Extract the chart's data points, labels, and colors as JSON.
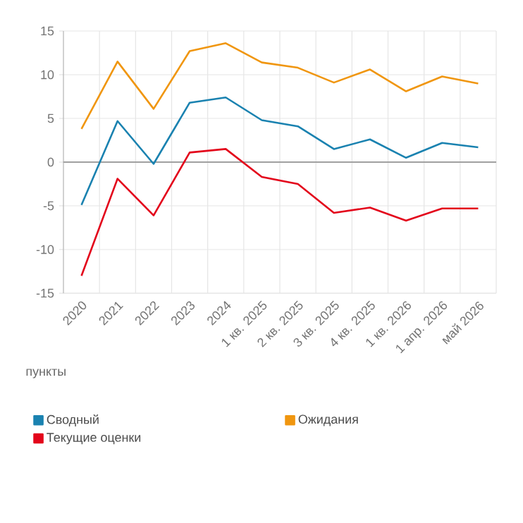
{
  "chart_data": {
    "type": "line",
    "ylabel": "пункты",
    "categories": [
      "2020",
      "2021",
      "2022",
      "2023",
      "2024",
      "1 кв. 2025",
      "2 кв. 2025",
      "3 кв. 2025",
      "4 кв. 2025",
      "1 кв. 2026",
      "1 апр. 2026",
      "май 2026"
    ],
    "series": [
      {
        "name": "Сводный",
        "color": "#1a82b0",
        "values": [
          -4.9,
          4.7,
          -0.2,
          6.8,
          7.4,
          4.8,
          4.1,
          1.5,
          2.6,
          0.5,
          2.2,
          1.7
        ]
      },
      {
        "name": "Ожидания",
        "color": "#f0960f",
        "values": [
          3.8,
          11.5,
          6.1,
          12.7,
          13.6,
          11.4,
          10.8,
          9.1,
          10.6,
          8.1,
          9.8,
          9.0
        ]
      },
      {
        "name": "Текущие оценки",
        "color": "#e3051b",
        "values": [
          -13.0,
          -1.9,
          -6.1,
          1.1,
          1.5,
          -1.7,
          -2.5,
          -5.8,
          -5.2,
          -6.7,
          -5.3,
          -5.3
        ]
      }
    ],
    "ylim": [
      -15,
      15
    ],
    "yticks": [
      -15,
      -10,
      -5,
      0,
      5,
      10,
      15
    ],
    "ref_lines": [
      {
        "axis": "y",
        "value": 0,
        "color": "#a0a0a0"
      }
    ],
    "grid": true,
    "legend": "bottom",
    "marker": "none",
    "line_style": "solid"
  }
}
